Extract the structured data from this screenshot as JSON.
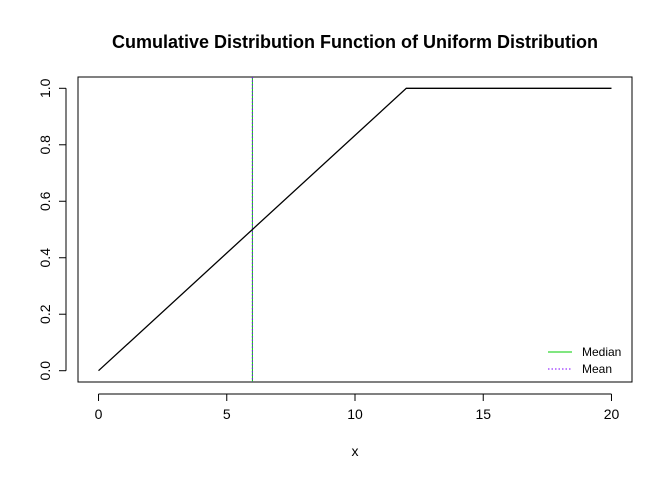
{
  "chart_data": {
    "type": "line",
    "title": "Cumulative Distribution Function of Uniform Distribution",
    "xlabel": "x",
    "ylabel": "",
    "xlim": [
      -0.8,
      20.8
    ],
    "ylim": [
      -0.04,
      1.04
    ],
    "xticks": [
      0,
      5,
      10,
      15,
      20
    ],
    "yticks": [
      0.0,
      0.2,
      0.4,
      0.6,
      0.8,
      1.0
    ],
    "ytick_labels": [
      "0.0",
      "0.2",
      "0.4",
      "0.6",
      "0.8",
      "1.0"
    ],
    "series": [
      {
        "x": [
          0,
          12,
          20
        ],
        "y": [
          0.0,
          1.0,
          1.0
        ],
        "color": "#000000"
      }
    ],
    "vlines": [
      {
        "name": "Median",
        "x": 6,
        "color": "#00cd00",
        "dash": "solid"
      },
      {
        "name": "Mean",
        "x": 6,
        "color": "#7f00ff",
        "dash": "dotted"
      }
    ],
    "legend": {
      "position": "bottom-right",
      "entries": [
        {
          "label": "Median",
          "color": "#00cd00",
          "dash": "solid"
        },
        {
          "label": "Mean",
          "color": "#7f00ff",
          "dash": "dotted"
        }
      ]
    },
    "grid": false
  }
}
